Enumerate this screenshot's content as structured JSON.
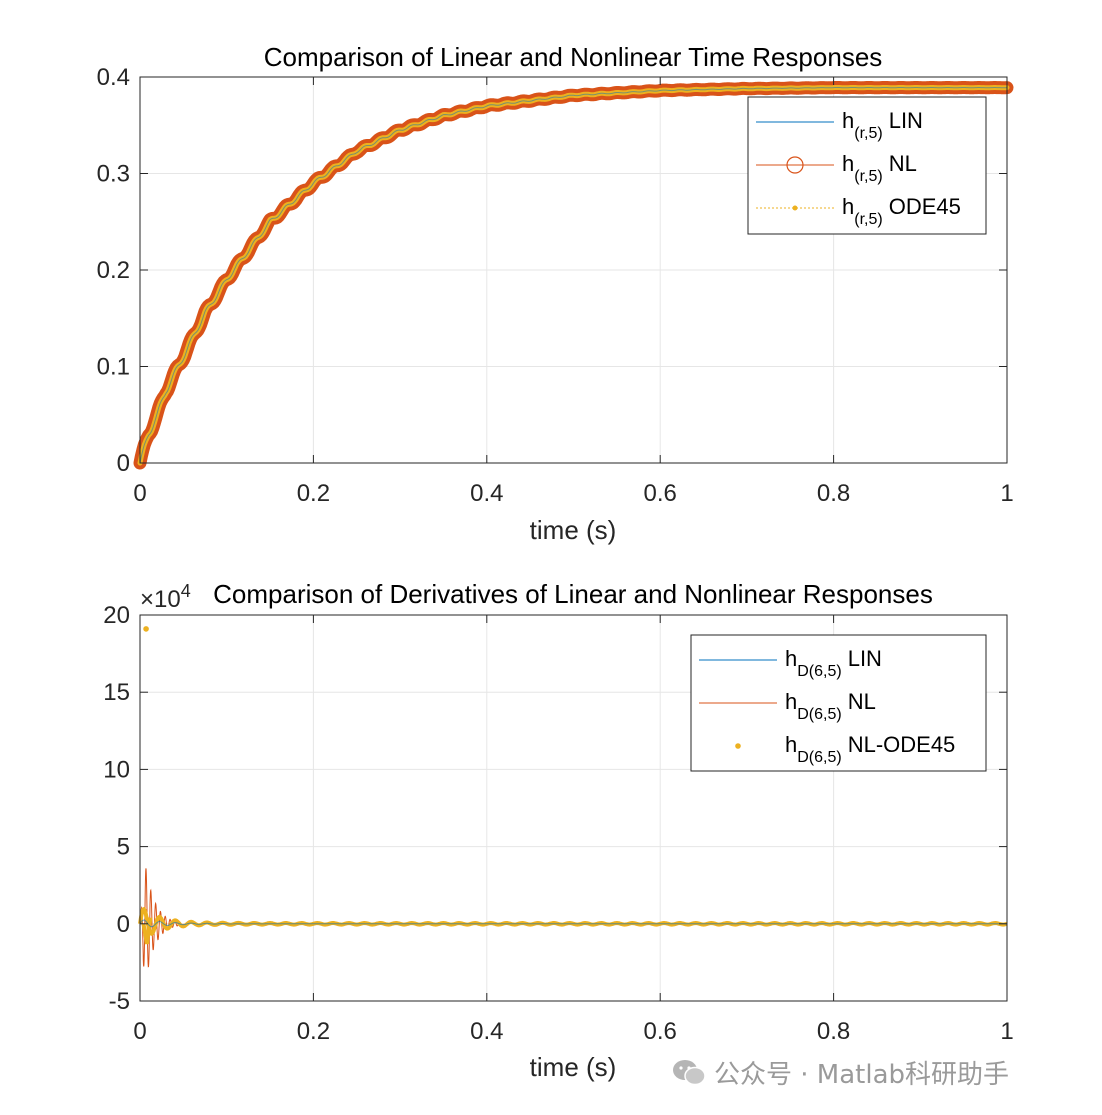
{
  "chart_data": [
    {
      "type": "line",
      "title": "Comparison of Linear and Nonlinear Time Responses",
      "xlabel": "time (s)",
      "ylabel": "",
      "xlim": [
        0,
        1
      ],
      "ylim": [
        0,
        0.4
      ],
      "xticks": [
        "0",
        "0.2",
        "0.4",
        "0.6",
        "0.8",
        "1"
      ],
      "yticks": [
        "0",
        "0.1",
        "0.2",
        "0.3",
        "0.4"
      ],
      "grid": true,
      "legend_position": "top-right",
      "x": [
        0,
        0.01,
        0.02,
        0.03,
        0.05,
        0.075,
        0.1,
        0.15,
        0.2,
        0.25,
        0.3,
        0.35,
        0.4,
        0.5,
        0.6,
        0.7,
        0.8,
        0.9,
        1.0
      ],
      "series": [
        {
          "name": "LIN",
          "label_main": "h",
          "label_sub": "(r,5)",
          "label_suffix": "LIN",
          "color": "#0072BD",
          "marker": "none",
          "values": [
            0,
            0.03,
            0.05,
            0.075,
            0.11,
            0.155,
            0.19,
            0.25,
            0.29,
            0.323,
            0.345,
            0.36,
            0.37,
            0.381,
            0.386,
            0.388,
            0.389,
            0.389,
            0.389
          ]
        },
        {
          "name": "NL",
          "label_main": "h",
          "label_sub": "(r,5)",
          "label_suffix": "NL",
          "color": "#D95319",
          "marker": "circle",
          "values": [
            0,
            0.03,
            0.05,
            0.075,
            0.11,
            0.155,
            0.19,
            0.25,
            0.29,
            0.323,
            0.345,
            0.36,
            0.37,
            0.381,
            0.386,
            0.388,
            0.389,
            0.389,
            0.389
          ]
        },
        {
          "name": "ODE45",
          "label_main": "h",
          "label_sub": "(r,5)",
          "label_suffix": "ODE45",
          "color": "#EDB120",
          "marker": "dot",
          "values": [
            0,
            0.03,
            0.05,
            0.075,
            0.11,
            0.155,
            0.19,
            0.25,
            0.29,
            0.323,
            0.345,
            0.36,
            0.37,
            0.381,
            0.386,
            0.388,
            0.389,
            0.389,
            0.389
          ]
        }
      ]
    },
    {
      "type": "line",
      "title": "Comparison of Derivatives of Linear and Nonlinear Responses",
      "xlabel": "time (s)",
      "ylabel": "",
      "y_exponent_label": "×10",
      "y_exponent": "4",
      "xlim": [
        0,
        1
      ],
      "ylim": [
        -5,
        20
      ],
      "xticks": [
        "0",
        "0.2",
        "0.4",
        "0.6",
        "0.8",
        "1"
      ],
      "yticks": [
        "-5",
        "0",
        "5",
        "10",
        "15",
        "20"
      ],
      "grid": true,
      "legend_position": "top-right",
      "series": [
        {
          "name": "LIN",
          "label_main": "h",
          "label_sub": "D(6,5)",
          "label_suffix": "LIN",
          "color": "#0072BD",
          "marker": "none",
          "peak": 0.3,
          "decay_to": 0.04
        },
        {
          "name": "NL",
          "label_main": "h",
          "label_sub": "D(6,5)",
          "label_suffix": "NL",
          "color": "#D95319",
          "marker": "none",
          "peak": 3.9,
          "peak_x": 0.006,
          "decay_to": 0.03
        },
        {
          "name": "NL-ODE45",
          "label_main": "h",
          "label_sub": "D(6,5)",
          "label_suffix": "NL-ODE45",
          "color": "#EDB120",
          "marker": "dot",
          "outlier": {
            "x": 0.007,
            "y": 19.1
          },
          "min": -1.3,
          "decay_to": 0.05
        }
      ]
    }
  ],
  "watermark": {
    "text": "公众号 · Matlab科研助手",
    "icon": "wechat-icon"
  }
}
